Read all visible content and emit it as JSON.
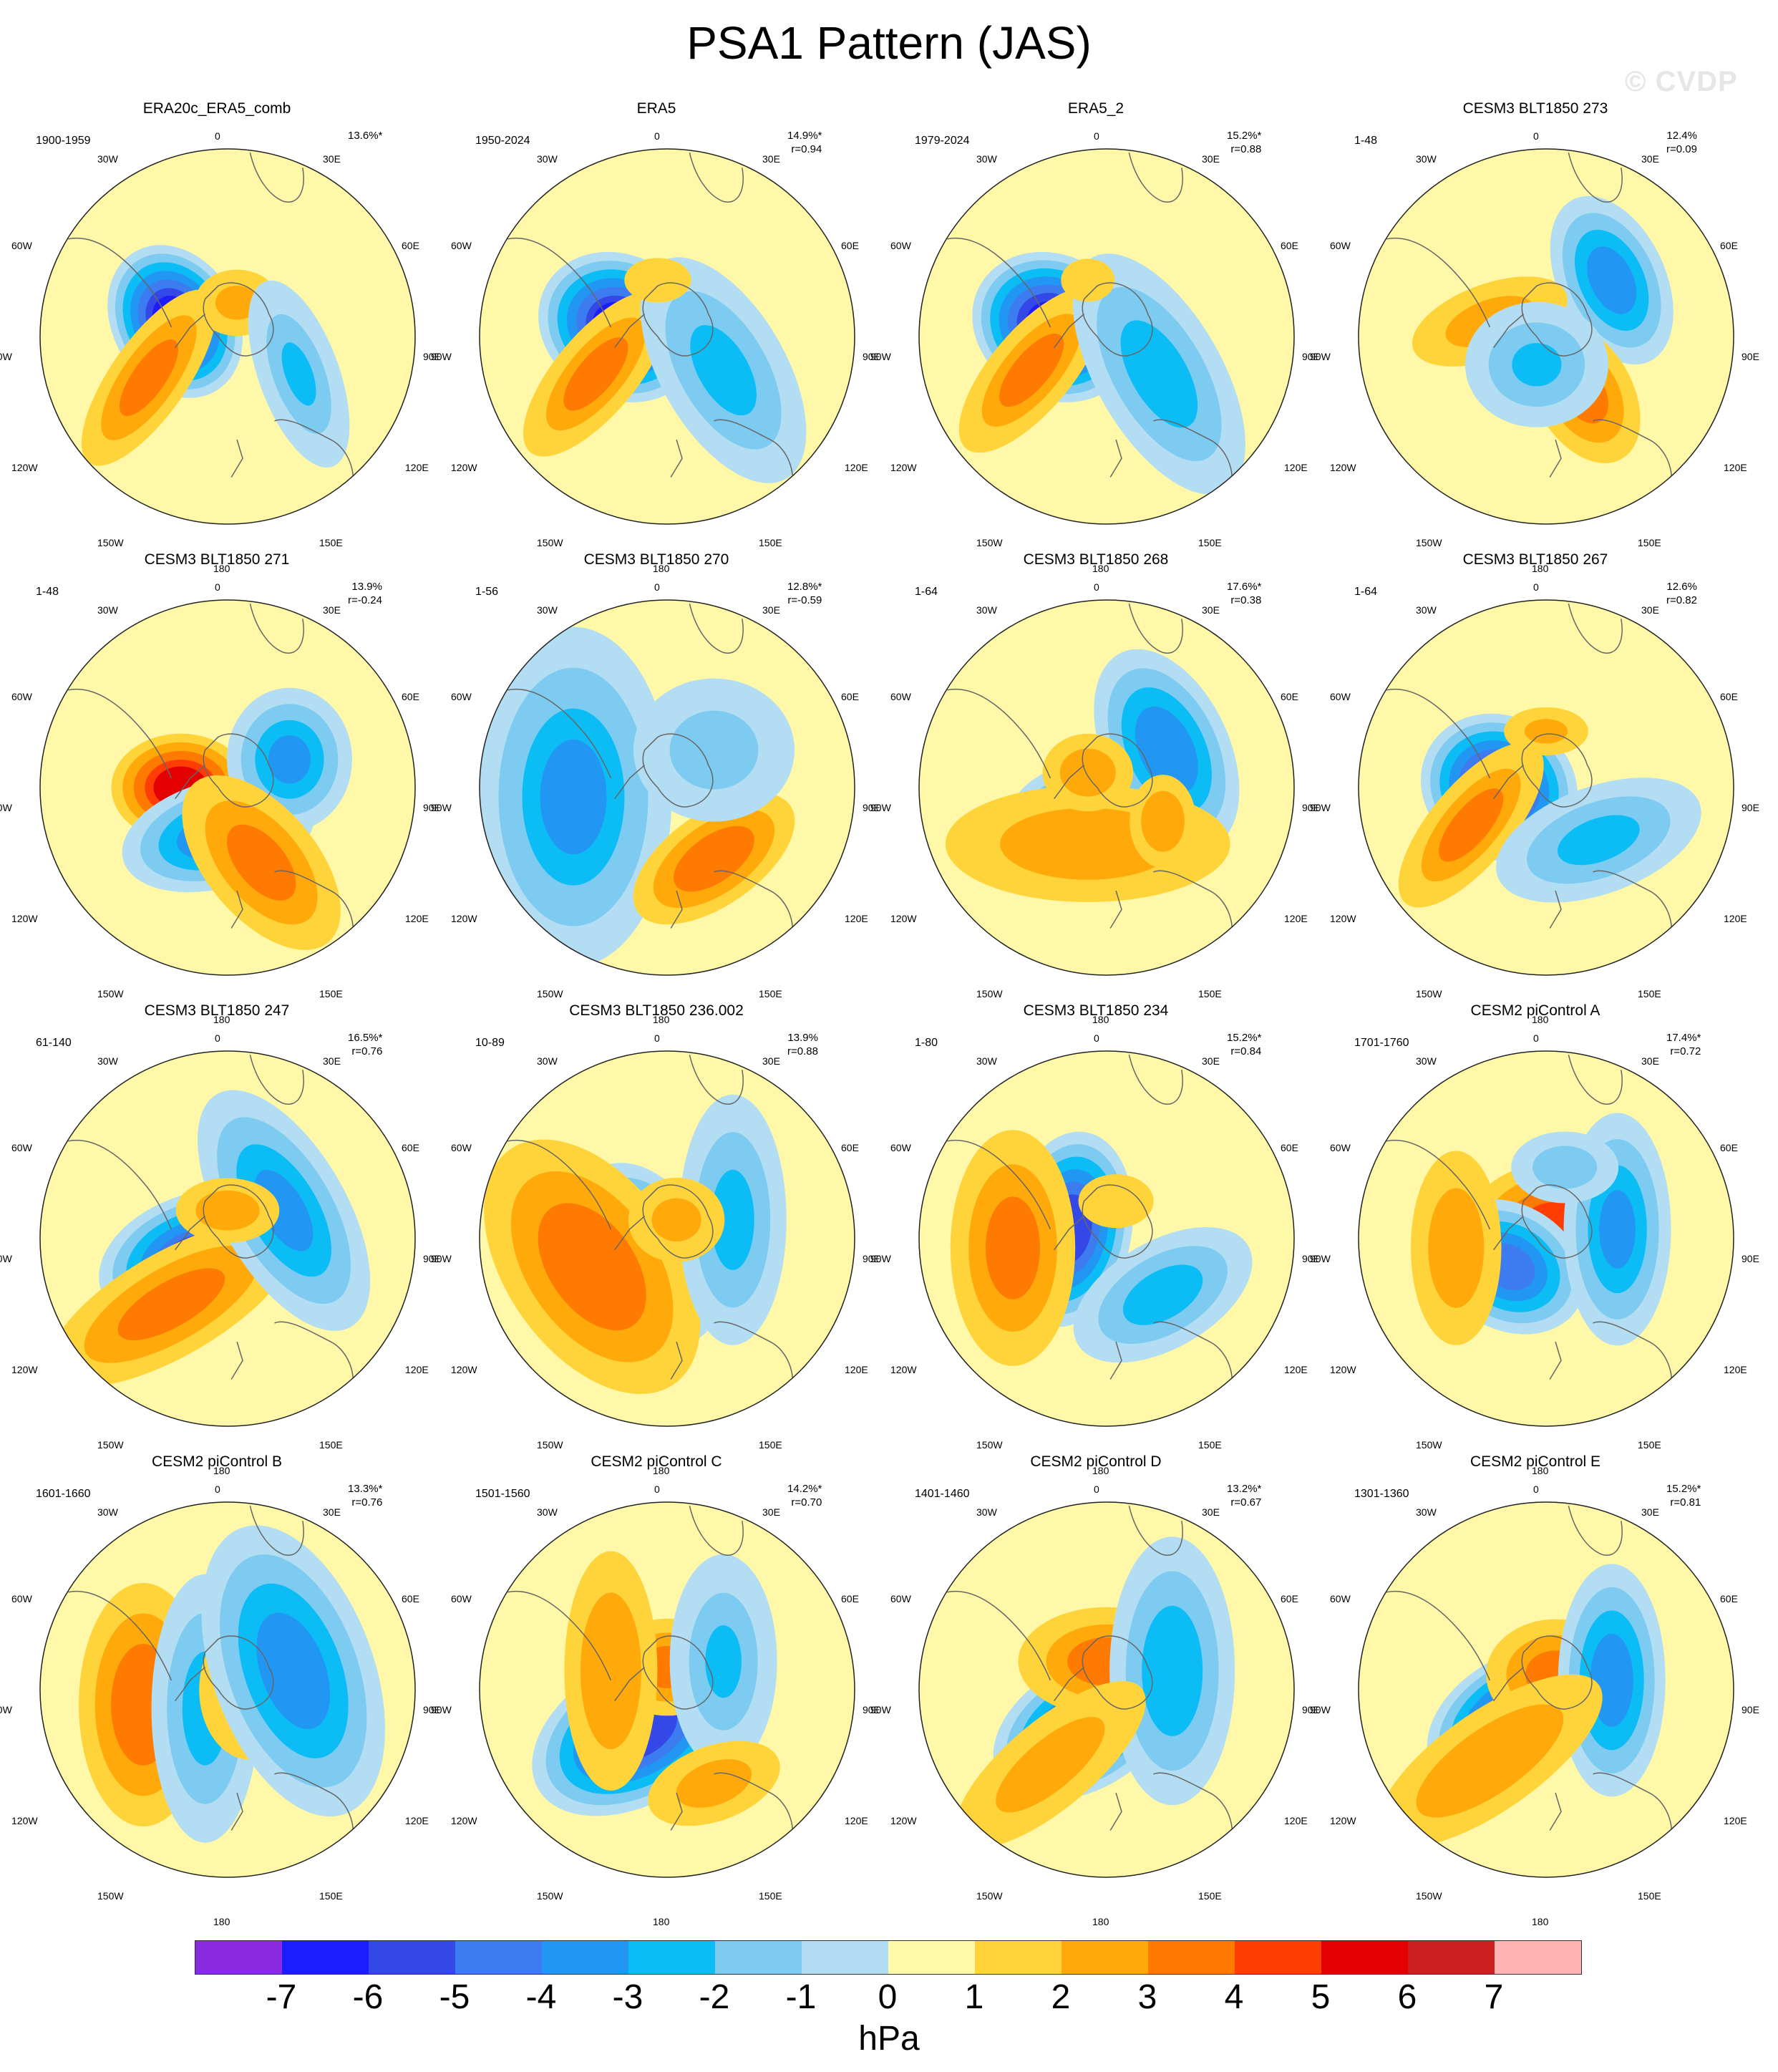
{
  "title": "PSA1 Pattern (JAS)",
  "watermark": "© CVDP",
  "lon_labels": [
    "0",
    "30E",
    "60E",
    "90E",
    "120E",
    "150E",
    "180",
    "150W",
    "120W",
    "90W",
    "60W",
    "30W"
  ],
  "panels": [
    {
      "title": "ERA20c_ERA5_comb",
      "period": "1900-1959",
      "pct": "13.6%*",
      "r": "",
      "pattern": [
        [
          -0.28,
          -0.08,
          -5.8,
          90,
          70,
          60
        ],
        [
          -0.42,
          0.22,
          2.6,
          150,
          55,
          -55
        ],
        [
          0.05,
          -0.18,
          1.6,
          70,
          55,
          0
        ],
        [
          0.38,
          0.2,
          -1.4,
          45,
          110,
          -20
        ]
      ]
    },
    {
      "title": "ERA5",
      "period": "1950-2024",
      "pct": "14.9%*",
      "r": "r=0.94",
      "pattern": [
        [
          -0.25,
          -0.05,
          -5.6,
          95,
          80,
          30
        ],
        [
          -0.38,
          0.2,
          2.4,
          150,
          60,
          -50
        ],
        [
          0.3,
          0.18,
          -1.8,
          70,
          140,
          -30
        ],
        [
          -0.05,
          -0.3,
          1.3,
          60,
          40,
          0
        ]
      ]
    },
    {
      "title": "ERA5_2",
      "period": "1979-2024",
      "pct": "15.2%*",
      "r": "r=0.88",
      "pattern": [
        [
          -0.28,
          -0.05,
          -6.0,
          95,
          80,
          30
        ],
        [
          -0.4,
          0.18,
          2.4,
          150,
          60,
          -50
        ],
        [
          0.28,
          0.2,
          -2.0,
          70,
          150,
          -30
        ],
        [
          -0.1,
          -0.3,
          1.2,
          50,
          40,
          0
        ]
      ]
    },
    {
      "title": "CESM3 BLT1850 273",
      "period": "1-48",
      "pct": "12.4%",
      "r": "r=0.09",
      "pattern": [
        [
          0.35,
          -0.3,
          -3.0,
          60,
          100,
          -25
        ],
        [
          -0.3,
          -0.08,
          1.8,
          130,
          60,
          -20
        ],
        [
          0.2,
          0.3,
          2.6,
          70,
          110,
          -30
        ],
        [
          -0.05,
          0.15,
          -1.6,
          80,
          70,
          0
        ]
      ]
    },
    {
      "title": "CESM3 BLT1850 271",
      "period": "1-48",
      "pct": "13.9%",
      "r": "r=-0.24",
      "pattern": [
        [
          -0.25,
          0.0,
          4.6,
          90,
          70,
          0
        ],
        [
          -0.05,
          0.25,
          -3.2,
          110,
          60,
          -15
        ],
        [
          0.33,
          -0.15,
          -2.6,
          70,
          80,
          0
        ],
        [
          0.18,
          0.4,
          2.6,
          80,
          150,
          -40
        ]
      ]
    },
    {
      "title": "CESM3 BLT1850 270",
      "period": "1-56",
      "pct": "12.8%*",
      "r": "r=-0.59",
      "pattern": [
        [
          -0.28,
          0.0,
          3.8,
          85,
          70,
          0
        ],
        [
          -0.5,
          0.05,
          -2.4,
          110,
          190,
          0
        ],
        [
          0.25,
          0.38,
          3.0,
          130,
          65,
          -35
        ],
        [
          0.25,
          -0.2,
          -1.0,
          90,
          80,
          0
        ]
      ]
    },
    {
      "title": "CESM3 BLT1850 268",
      "period": "1-64",
      "pct": "17.6%*",
      "r": "r=0.38",
      "pattern": [
        [
          0.0,
          0.18,
          -4.2,
          110,
          70,
          0
        ],
        [
          0.32,
          -0.2,
          -3.2,
          70,
          120,
          -25
        ],
        [
          -0.1,
          0.3,
          2.0,
          220,
          90,
          0
        ],
        [
          -0.1,
          -0.08,
          2.0,
          70,
          60,
          0
        ],
        [
          0.3,
          0.18,
          2.2,
          50,
          70,
          0
        ]
      ]
    },
    {
      "title": "CESM3 BLT1850 267",
      "period": "1-64",
      "pct": "12.6%",
      "r": "r=0.82",
      "pattern": [
        [
          -0.25,
          0.0,
          -5.4,
          90,
          80,
          30
        ],
        [
          -0.4,
          0.2,
          2.4,
          150,
          60,
          -50
        ],
        [
          0.28,
          0.28,
          -1.8,
          120,
          60,
          -20
        ],
        [
          0.0,
          -0.3,
          1.6,
          70,
          40,
          0
        ]
      ]
    },
    {
      "title": "CESM3 BLT1850 247",
      "period": "61-140",
      "pct": "16.5%*",
      "r": "r=0.76",
      "pattern": [
        [
          -0.18,
          0.1,
          -4.4,
          110,
          70,
          -20
        ],
        [
          -0.3,
          0.35,
          2.6,
          200,
          75,
          -30
        ],
        [
          0.3,
          -0.15,
          -2.6,
          70,
          150,
          -30
        ],
        [
          0.0,
          -0.15,
          2.0,
          80,
          50,
          0
        ]
      ]
    },
    {
      "title": "CESM3 BLT1850 236.002",
      "period": "10-89",
      "pct": "13.9%",
      "r": "r=0.88",
      "pattern": [
        [
          -0.1,
          0.08,
          -3.8,
          70,
          110,
          -30
        ],
        [
          -0.4,
          0.15,
          3.0,
          120,
          200,
          -35
        ],
        [
          0.35,
          -0.1,
          -1.8,
          60,
          140,
          0
        ],
        [
          0.05,
          -0.1,
          1.6,
          80,
          70,
          0
        ]
      ]
    },
    {
      "title": "CESM3 BLT1850 234",
      "period": "1-80",
      "pct": "15.2%*",
      "r": "r=0.84",
      "pattern": [
        [
          -0.2,
          -0.05,
          -5.0,
          70,
          110,
          10
        ],
        [
          -0.5,
          0.05,
          2.6,
          90,
          170,
          0
        ],
        [
          0.3,
          0.3,
          -2.0,
          110,
          60,
          -30
        ],
        [
          0.05,
          -0.2,
          1.2,
          70,
          50,
          0
        ]
      ]
    },
    {
      "title": "CESM2 piControl A",
      "period": "1701-1760",
      "pct": "17.4%*",
      "r": "r=0.72",
      "pattern": [
        [
          0.05,
          -0.05,
          3.6,
          120,
          90,
          0
        ],
        [
          -0.2,
          0.15,
          -3.8,
          90,
          70,
          30
        ],
        [
          0.38,
          -0.05,
          -2.6,
          60,
          130,
          0
        ],
        [
          -0.48,
          0.05,
          2.0,
          70,
          150,
          0
        ],
        [
          0.1,
          -0.38,
          -1.2,
          60,
          40,
          0
        ]
      ]
    },
    {
      "title": "CESM2 piControl B",
      "period": "1601-1660",
      "pct": "13.3%*",
      "r": "r=0.76",
      "pattern": [
        [
          -0.45,
          0.08,
          3.0,
          90,
          170,
          0
        ],
        [
          -0.12,
          0.1,
          -1.9,
          60,
          150,
          0
        ],
        [
          0.12,
          0.0,
          1.9,
          80,
          110,
          0
        ],
        [
          0.35,
          -0.1,
          -3.0,
          90,
          170,
          -20
        ]
      ]
    },
    {
      "title": "CESM2 piControl C",
      "period": "1501-1560",
      "pct": "14.2%*",
      "r": "r=0.70",
      "pattern": [
        [
          -0.15,
          0.22,
          -5.0,
          130,
          80,
          -30
        ],
        [
          0.0,
          -0.12,
          2.6,
          90,
          70,
          0
        ],
        [
          -0.3,
          -0.1,
          2.2,
          70,
          180,
          0
        ],
        [
          0.3,
          -0.15,
          -1.4,
          60,
          120,
          0
        ],
        [
          0.25,
          0.5,
          1.8,
          110,
          60,
          -20
        ]
      ]
    },
    {
      "title": "CESM2 piControl D",
      "period": "1401-1460",
      "pct": "13.2%*",
      "r": "r=0.67",
      "pattern": [
        [
          -0.12,
          0.2,
          -4.4,
          110,
          70,
          -30
        ],
        [
          0.0,
          -0.15,
          2.4,
          130,
          80,
          0
        ],
        [
          0.35,
          -0.1,
          -2.2,
          70,
          150,
          0
        ],
        [
          -0.3,
          0.4,
          1.8,
          190,
          70,
          -40
        ]
      ]
    },
    {
      "title": "CESM2 piControl E",
      "period": "1301-1360",
      "pct": "15.2%*",
      "r": "r=0.81",
      "pattern": [
        [
          -0.15,
          0.15,
          -5.0,
          110,
          70,
          -30
        ],
        [
          0.05,
          -0.08,
          2.6,
          100,
          80,
          0
        ],
        [
          0.35,
          -0.05,
          -3.0,
          60,
          130,
          0
        ],
        [
          -0.3,
          0.38,
          2.2,
          200,
          75,
          -35
        ]
      ]
    }
  ],
  "colorbar": {
    "colors": [
      "#8a2be2",
      "#1c1cff",
      "#3448e8",
      "#3d7cf0",
      "#2196f3",
      "#0bbcf5",
      "#7dcbf0",
      "#b3ddf2",
      "#fff8a8",
      "#ffd43a",
      "#ffaa0a",
      "#ff7a00",
      "#ff3d05",
      "#e40000",
      "#cc1f1f",
      "#ffb2b2"
    ],
    "ticks": [
      "-7",
      "-6",
      "-5",
      "-4",
      "-3",
      "-2",
      "-1",
      "0",
      "1",
      "2",
      "3",
      "4",
      "5",
      "6",
      "7"
    ],
    "unit": "hPa"
  }
}
